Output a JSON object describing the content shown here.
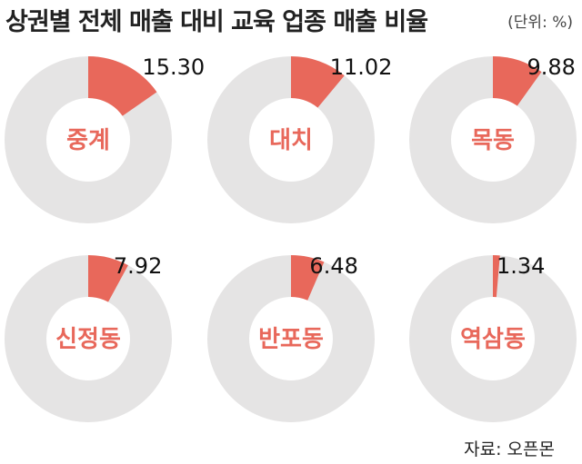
{
  "header": {
    "title": "상권별 전체 매출 대비 교육 업종 매출 비율",
    "unit": "(단위: %)"
  },
  "footer": {
    "source": "자료: 오픈몬"
  },
  "colors": {
    "accent": "#e8685b",
    "ring": "#e5e4e4",
    "text": "#222222"
  },
  "chart_data": [
    {
      "type": "pie",
      "label": "중계",
      "value": 15.3,
      "value_text": "15.30"
    },
    {
      "type": "pie",
      "label": "대치",
      "value": 11.02,
      "value_text": "11.02"
    },
    {
      "type": "pie",
      "label": "목동",
      "value": 9.88,
      "value_text": "9.88"
    },
    {
      "type": "pie",
      "label": "신정동",
      "value": 7.92,
      "value_text": "7.92"
    },
    {
      "type": "pie",
      "label": "반포동",
      "value": 6.48,
      "value_text": "6.48"
    },
    {
      "type": "pie",
      "label": "역삼동",
      "value": 1.34,
      "value_text": "1.34"
    }
  ]
}
